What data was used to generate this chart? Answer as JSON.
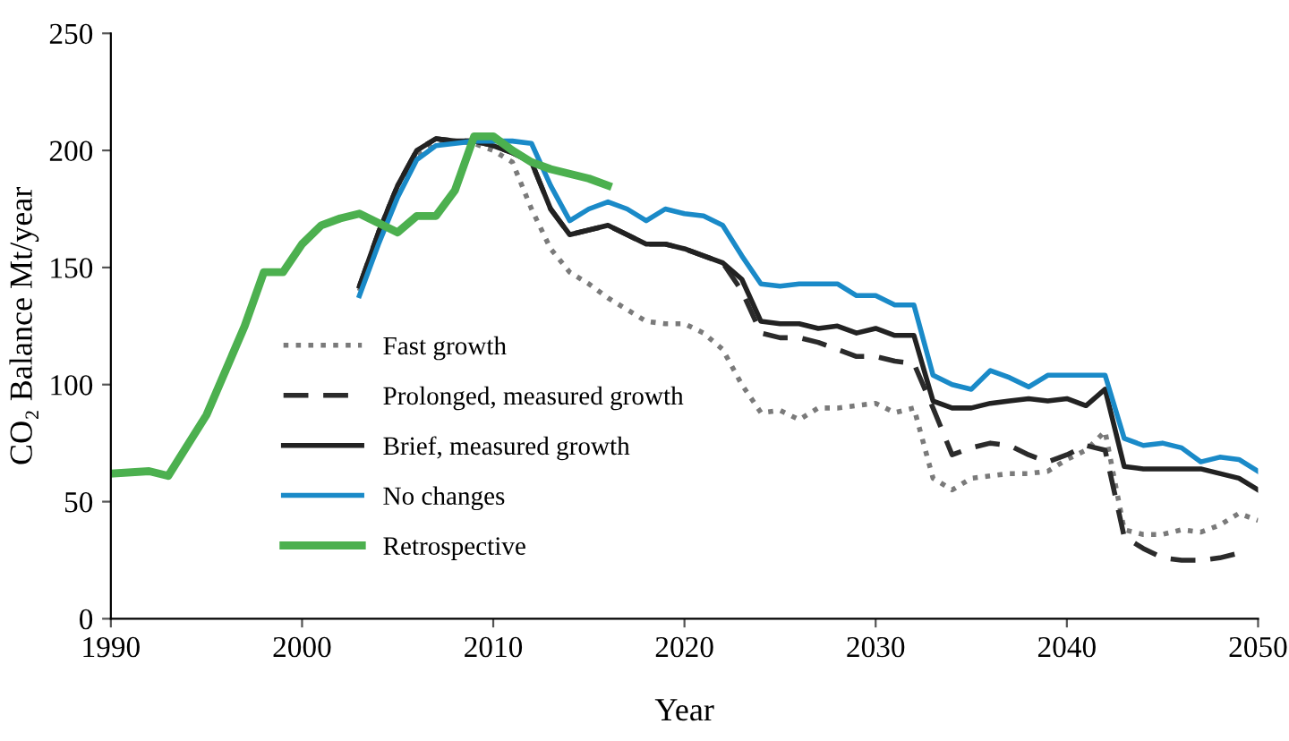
{
  "chart_data": {
    "type": "line",
    "xlabel": "Year",
    "ylabel": "CO₂ Balance Mt/year",
    "xlim": [
      1990,
      2050
    ],
    "xticks": [
      1990,
      2000,
      2010,
      2020,
      2030,
      2040,
      2050
    ],
    "ylim": [
      0,
      250
    ],
    "yticks": [
      0,
      50,
      100,
      150,
      200,
      250
    ],
    "grid": false,
    "legend": "lower left",
    "series": [
      {
        "name": "Fast growth",
        "color": "#7a7a7a",
        "line_style": "dotted",
        "x": [
          2003,
          2004,
          2005,
          2006,
          2007,
          2008,
          2009,
          2010,
          2011,
          2012,
          2013,
          2014,
          2015,
          2016,
          2017,
          2018,
          2019,
          2020,
          2021,
          2022,
          2023,
          2024,
          2025,
          2026,
          2027,
          2028,
          2029,
          2030,
          2031,
          2032,
          2033,
          2034,
          2035,
          2036,
          2037,
          2038,
          2039,
          2040,
          2041,
          2042,
          2043,
          2044,
          2045,
          2046,
          2047,
          2048,
          2049,
          2050
        ],
        "values": [
          140,
          165,
          185,
          198,
          203,
          204,
          203,
          200,
          195,
          175,
          158,
          148,
          143,
          137,
          132,
          127,
          126,
          126,
          122,
          115,
          100,
          88,
          89,
          85,
          90,
          90,
          91,
          92,
          88,
          90,
          60,
          55,
          60,
          61,
          62,
          62,
          63,
          68,
          72,
          80,
          38,
          36,
          36,
          38,
          37,
          40,
          45,
          42
        ]
      },
      {
        "name": "Prolonged, measured growth",
        "color": "#2b2b2b",
        "line_style": "dashed",
        "x": [
          2003,
          2004,
          2005,
          2006,
          2007,
          2008,
          2009,
          2010,
          2011,
          2012,
          2013,
          2014,
          2015,
          2016,
          2017,
          2018,
          2019,
          2020,
          2021,
          2022,
          2023,
          2024,
          2025,
          2026,
          2027,
          2028,
          2029,
          2030,
          2031,
          2032,
          2033,
          2034,
          2035,
          2036,
          2037,
          2038,
          2039,
          2040,
          2041,
          2042,
          2043,
          2044,
          2045,
          2046,
          2047,
          2048,
          2049
        ],
        "values": [
          142,
          165,
          185,
          200,
          205,
          204,
          204,
          202,
          199,
          195,
          175,
          164,
          166,
          168,
          164,
          160,
          160,
          158,
          155,
          152,
          140,
          122,
          120,
          120,
          118,
          115,
          112,
          112,
          110,
          109,
          90,
          70,
          73,
          75,
          74,
          70,
          67,
          70,
          74,
          72,
          35,
          30,
          26,
          25,
          25,
          26,
          28
        ]
      },
      {
        "name": "Brief, measured growth",
        "color": "#222222",
        "line_style": "solid",
        "x": [
          2003,
          2004,
          2005,
          2006,
          2007,
          2008,
          2009,
          2010,
          2011,
          2012,
          2013,
          2014,
          2015,
          2016,
          2017,
          2018,
          2019,
          2020,
          2021,
          2022,
          2023,
          2024,
          2025,
          2026,
          2027,
          2028,
          2029,
          2030,
          2031,
          2032,
          2033,
          2034,
          2035,
          2036,
          2037,
          2038,
          2039,
          2040,
          2041,
          2042,
          2043,
          2044,
          2045,
          2046,
          2047,
          2048,
          2049,
          2050
        ],
        "values": [
          142,
          165,
          185,
          200,
          205,
          204,
          204,
          202,
          199,
          195,
          175,
          164,
          166,
          168,
          164,
          160,
          160,
          158,
          155,
          152,
          145,
          127,
          126,
          126,
          124,
          125,
          122,
          124,
          121,
          121,
          93,
          90,
          90,
          92,
          93,
          94,
          93,
          94,
          91,
          98,
          65,
          64,
          64,
          64,
          64,
          62,
          60,
          55
        ]
      },
      {
        "name": "No changes",
        "color": "#1a8ac8",
        "line_style": "solid",
        "x": [
          2003,
          2004,
          2005,
          2006,
          2007,
          2008,
          2009,
          2010,
          2011,
          2012,
          2013,
          2014,
          2015,
          2016,
          2017,
          2018,
          2019,
          2020,
          2021,
          2022,
          2023,
          2024,
          2025,
          2026,
          2027,
          2028,
          2029,
          2030,
          2031,
          2032,
          2033,
          2034,
          2035,
          2036,
          2037,
          2038,
          2039,
          2040,
          2041,
          2042,
          2043,
          2044,
          2045,
          2046,
          2047,
          2048,
          2049,
          2050
        ],
        "values": [
          138,
          160,
          180,
          196,
          202,
          203,
          204,
          204,
          204,
          203,
          185,
          170,
          175,
          178,
          175,
          170,
          175,
          173,
          172,
          168,
          155,
          143,
          142,
          143,
          143,
          143,
          138,
          138,
          134,
          134,
          104,
          100,
          98,
          106,
          103,
          99,
          104,
          104,
          104,
          104,
          77,
          74,
          75,
          73,
          67,
          69,
          68,
          63
        ]
      },
      {
        "name": "Retrospective",
        "color": "#4cb04f",
        "line_style": "solid",
        "x": [
          1990,
          1992,
          1993,
          1995,
          1997,
          1998,
          1999,
          2000,
          2001,
          2002,
          2003,
          2004,
          2005,
          2006,
          2007,
          2008,
          2009,
          2010,
          2011,
          2012,
          2013,
          2014,
          2015,
          2016
        ],
        "values": [
          62,
          63,
          61,
          87,
          125,
          148,
          148,
          160,
          168,
          171,
          173,
          169,
          165,
          172,
          172,
          183,
          206,
          206,
          200,
          195,
          192,
          190,
          188,
          185
        ]
      }
    ]
  }
}
